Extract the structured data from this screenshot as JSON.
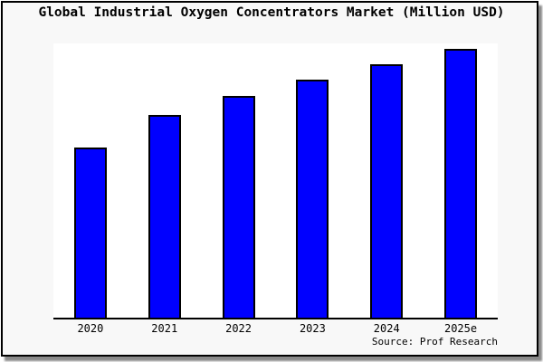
{
  "chart_data": {
    "type": "bar",
    "title": "Global Industrial Oxygen Concentrators Market (Million USD)",
    "categories": [
      "2020",
      "2021",
      "2022",
      "2023",
      "2024",
      "2025e"
    ],
    "values": [
      63.4,
      75.5,
      82.6,
      88.6,
      94.3,
      100
    ],
    "values_note": "No y-axis scale or data labels are shown in the image; values are relative bar heights normalized so 2025e = 100",
    "xlabel": "",
    "ylabel": "",
    "ylim": [
      0,
      102
    ],
    "grid": false,
    "legend": false,
    "source_label": "Source: Prof Research",
    "colors": {
      "bar_fill": "#0000ff",
      "bar_border": "#000000",
      "plot_background": "#ffffff",
      "canvas_background": "#f8f8f8",
      "frame_border": "#000000",
      "shadow": "#8a8a8a",
      "text": "#000000"
    }
  }
}
